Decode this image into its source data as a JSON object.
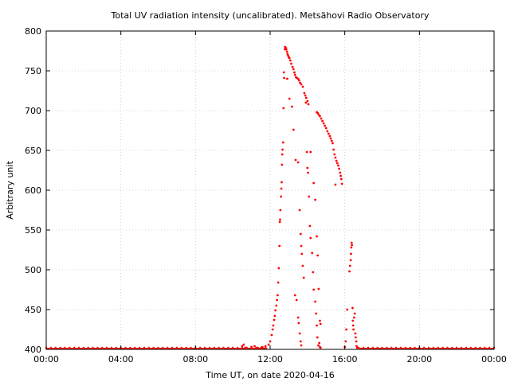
{
  "chart_data": {
    "type": "scatter",
    "title": "Total UV radiation intensity (uncalibrated). Metsähovi Radio Observatory",
    "xlabel": "Time UT, on date 2020-04-16",
    "ylabel": "Arbitrary unit",
    "xlim": [
      "00:00",
      "24:00"
    ],
    "ylim": [
      400,
      800
    ],
    "x_ticks": [
      "00:00",
      "04:00",
      "08:00",
      "12:00",
      "16:00",
      "20:00",
      "00:00"
    ],
    "y_ticks": [
      "400",
      "450",
      "500",
      "550",
      "600",
      "650",
      "700",
      "750",
      "800"
    ],
    "grid": true,
    "point_color": "#ff0000",
    "baseline_value": 401,
    "series": [
      {
        "points": [
          [
            "10:30",
            404
          ],
          [
            "10:35",
            406
          ],
          [
            "10:40",
            402
          ],
          [
            "11:00",
            403
          ],
          [
            "11:10",
            404
          ],
          [
            "11:20",
            402
          ],
          [
            "11:35",
            403
          ],
          [
            "11:45",
            404
          ],
          [
            "11:55",
            406
          ],
          [
            "12:00",
            410
          ],
          [
            "12:05",
            418
          ],
          [
            "12:08",
            425
          ],
          [
            "12:10",
            430
          ],
          [
            "12:13",
            437
          ],
          [
            "12:15",
            442
          ],
          [
            "12:17",
            449
          ],
          [
            "12:20",
            455
          ],
          [
            "12:22",
            462
          ],
          [
            "12:24",
            468
          ],
          [
            "12:26",
            484
          ],
          [
            "12:28",
            502
          ],
          [
            "12:30",
            530
          ],
          [
            "12:31",
            560
          ],
          [
            "12:32",
            563
          ],
          [
            "12:33",
            575
          ],
          [
            "12:35",
            592
          ],
          [
            "12:36",
            602
          ],
          [
            "12:37",
            610
          ],
          [
            "12:38",
            632
          ],
          [
            "12:39",
            645
          ],
          [
            "12:40",
            651
          ],
          [
            "12:42",
            660
          ],
          [
            "12:43",
            703
          ],
          [
            "12:44",
            748
          ],
          [
            "12:45",
            741
          ],
          [
            "12:47",
            777
          ],
          [
            "12:48",
            780
          ],
          [
            "12:50",
            779
          ],
          [
            "12:52",
            777
          ],
          [
            "12:54",
            774
          ],
          [
            "12:56",
            771
          ],
          [
            "12:58",
            769
          ],
          [
            "13:00",
            767
          ],
          [
            "13:02",
            766
          ],
          [
            "13:05",
            763
          ],
          [
            "13:08",
            759
          ],
          [
            "13:12",
            755
          ],
          [
            "13:15",
            752
          ],
          [
            "13:18",
            748
          ],
          [
            "13:20",
            745
          ],
          [
            "13:23",
            742
          ],
          [
            "13:26",
            741
          ],
          [
            "13:30",
            740
          ],
          [
            "13:33",
            738
          ],
          [
            "13:36",
            735
          ],
          [
            "13:40",
            733
          ],
          [
            "13:45",
            730
          ],
          [
            "13:50",
            722
          ],
          [
            "13:53",
            719
          ],
          [
            "13:56",
            716
          ],
          [
            "14:00",
            712
          ],
          [
            "14:03",
            708
          ],
          [
            "14:30",
            698
          ],
          [
            "14:33",
            697
          ],
          [
            "14:36",
            695
          ],
          [
            "14:40",
            693
          ],
          [
            "14:44",
            690
          ],
          [
            "14:48",
            687
          ],
          [
            "14:52",
            684
          ],
          [
            "14:56",
            681
          ],
          [
            "15:00",
            678
          ],
          [
            "15:04",
            674
          ],
          [
            "15:08",
            671
          ],
          [
            "15:12",
            668
          ],
          [
            "15:15",
            665
          ],
          [
            "15:18",
            662
          ],
          [
            "15:21",
            659
          ],
          [
            "15:24",
            651
          ],
          [
            "15:27",
            645
          ],
          [
            "15:30",
            641
          ],
          [
            "15:33",
            637
          ],
          [
            "15:36",
            634
          ],
          [
            "15:39",
            631
          ],
          [
            "15:42",
            627
          ],
          [
            "15:45",
            622
          ],
          [
            "15:47",
            618
          ],
          [
            "15:49",
            614
          ],
          [
            "15:51",
            608
          ],
          [
            "12:55",
            740
          ],
          [
            "13:02",
            715
          ],
          [
            "13:10",
            705
          ],
          [
            "13:15",
            676
          ],
          [
            "13:22",
            638
          ],
          [
            "13:30",
            635
          ],
          [
            "13:35",
            575
          ],
          [
            "13:38",
            545
          ],
          [
            "13:40",
            530
          ],
          [
            "13:42",
            520
          ],
          [
            "13:45",
            505
          ],
          [
            "13:48",
            490
          ],
          [
            "13:20",
            468
          ],
          [
            "13:25",
            462
          ],
          [
            "13:30",
            440
          ],
          [
            "13:32",
            433
          ],
          [
            "13:35",
            420
          ],
          [
            "13:38",
            410
          ],
          [
            "13:40",
            405
          ],
          [
            "13:55",
            710
          ],
          [
            "13:58",
            648
          ],
          [
            "14:00",
            628
          ],
          [
            "14:02",
            622
          ],
          [
            "14:05",
            592
          ],
          [
            "14:08",
            555
          ],
          [
            "14:10",
            540
          ],
          [
            "14:15",
            521
          ],
          [
            "14:18",
            497
          ],
          [
            "14:20",
            475
          ],
          [
            "14:25",
            460
          ],
          [
            "14:28",
            445
          ],
          [
            "14:30",
            430
          ],
          [
            "14:32",
            415
          ],
          [
            "14:35",
            405
          ],
          [
            "14:38",
            408
          ],
          [
            "14:40",
            403
          ],
          [
            "14:42",
            402
          ],
          [
            "14:10",
            648
          ],
          [
            "14:20",
            609
          ],
          [
            "14:25",
            588
          ],
          [
            "14:30",
            542
          ],
          [
            "14:33",
            518
          ],
          [
            "14:36",
            476
          ],
          [
            "14:40",
            436
          ],
          [
            "14:42",
            432
          ],
          [
            "15:30",
            607
          ],
          [
            "16:00",
            403
          ],
          [
            "16:03",
            410
          ],
          [
            "16:05",
            425
          ],
          [
            "16:08",
            450
          ],
          [
            "16:15",
            498
          ],
          [
            "16:17",
            505
          ],
          [
            "16:19",
            512
          ],
          [
            "16:20",
            520
          ],
          [
            "16:21",
            528
          ],
          [
            "16:22",
            534
          ],
          [
            "16:23",
            531
          ],
          [
            "16:25",
            452
          ],
          [
            "16:26",
            436
          ],
          [
            "16:27",
            430
          ],
          [
            "16:28",
            425
          ],
          [
            "16:30",
            440
          ],
          [
            "16:32",
            445
          ],
          [
            "16:34",
            420
          ],
          [
            "16:35",
            415
          ],
          [
            "16:37",
            410
          ],
          [
            "16:38",
            404
          ],
          [
            "16:40",
            402
          ]
        ]
      }
    ]
  }
}
